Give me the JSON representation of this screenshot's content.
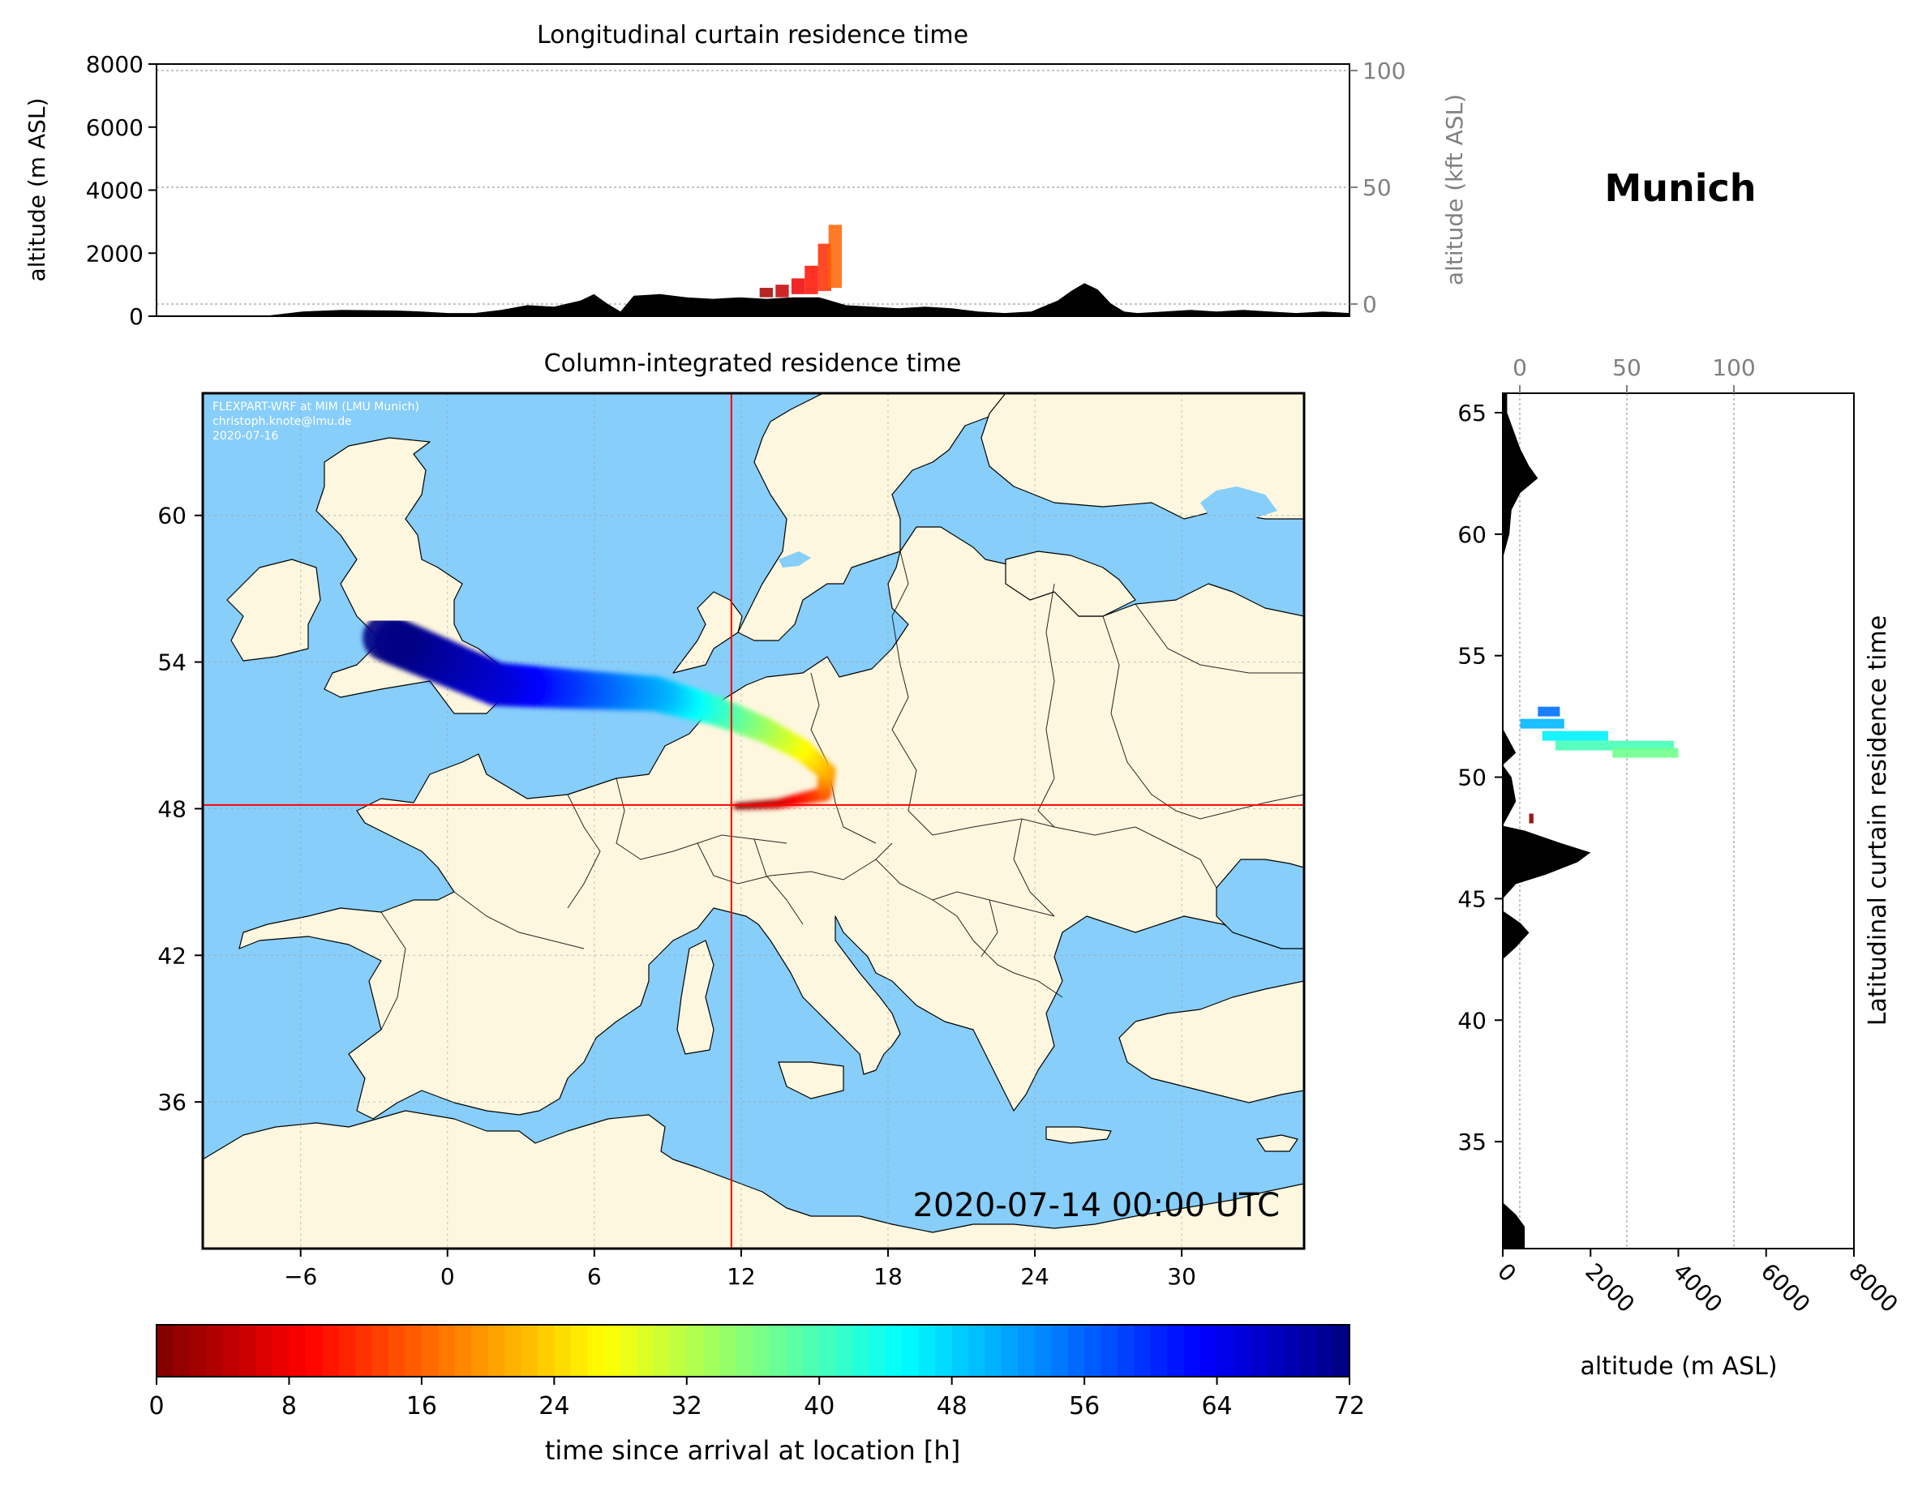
{
  "location_title": "Munich",
  "stamp": "2020-07-14 00:00 UTC",
  "credits": [
    "FLEXPART-WRF at MIM (LMU Munich)",
    "christoph.knote@lmu.de",
    "2020-07-16"
  ],
  "colors": {
    "ocean": "#87CEFA",
    "land": "#FEF7DF",
    "terrain": "#000000",
    "crosshair": "#ff0000"
  },
  "chart_data": [
    {
      "type": "area",
      "title": "Longitudinal curtain residence time",
      "ylabel": "altitude (m ASL)",
      "ylim": [
        0,
        8000
      ],
      "yticks": [
        0,
        2000,
        4000,
        6000,
        8000
      ],
      "y2label": "altitude (kft ASL)",
      "y2ticks": [
        0,
        50,
        100
      ],
      "terrain": {
        "x": [
          -10,
          -6,
          -4.5,
          -3,
          -1,
          0,
          1,
          2,
          3,
          4,
          5,
          6,
          6.5,
          7,
          7.5,
          8,
          9,
          10,
          11,
          12,
          13,
          14,
          15,
          16,
          17,
          18,
          19,
          20,
          21,
          22,
          23,
          24,
          24.5,
          25,
          25.5,
          26,
          26.5,
          27,
          28,
          29,
          30,
          31,
          32,
          33,
          34,
          35
        ],
        "y": [
          0,
          0,
          150,
          200,
          180,
          150,
          100,
          100,
          200,
          350,
          300,
          500,
          700,
          400,
          150,
          650,
          700,
          600,
          550,
          600,
          550,
          600,
          600,
          350,
          300,
          250,
          300,
          250,
          150,
          100,
          150,
          500,
          800,
          1050,
          850,
          400,
          150,
          100,
          150,
          200,
          150,
          200,
          150,
          100,
          150,
          100
        ]
      },
      "residence": [
        {
          "lon": 13.0,
          "bottom": 600,
          "top": 900,
          "hours": 3
        },
        {
          "lon": 13.6,
          "bottom": 600,
          "top": 1000,
          "hours": 5
        },
        {
          "lon": 14.2,
          "bottom": 700,
          "top": 1200,
          "hours": 8
        },
        {
          "lon": 14.7,
          "bottom": 700,
          "top": 1600,
          "hours": 10
        },
        {
          "lon": 15.2,
          "bottom": 800,
          "top": 2300,
          "hours": 12
        },
        {
          "lon": 15.6,
          "bottom": 900,
          "top": 2900,
          "hours": 16
        }
      ]
    },
    {
      "type": "heatmap",
      "title": "Column-integrated residence time",
      "xlim": [
        -10,
        35
      ],
      "ylim": [
        30,
        65
      ],
      "xticks": [
        -6,
        0,
        6,
        12,
        18,
        24,
        30
      ],
      "yticks": [
        36,
        42,
        48,
        54,
        60
      ],
      "release_point": {
        "lon": 11.6,
        "lat": 48.15
      },
      "colorbar": {
        "label": "time since arrival at location [h]",
        "range": [
          0,
          72
        ],
        "ticks": [
          0,
          8,
          16,
          24,
          32,
          40,
          48,
          56,
          64,
          72
        ],
        "colormap": "jet"
      },
      "plume_path": [
        {
          "lon": 11.8,
          "lat": 48.1,
          "hours": 0
        },
        {
          "lon": 13.5,
          "lat": 48.2,
          "hours": 5
        },
        {
          "lon": 15.4,
          "lat": 48.6,
          "hours": 14
        },
        {
          "lon": 15.5,
          "lat": 49.5,
          "hours": 20
        },
        {
          "lon": 14.5,
          "lat": 50.4,
          "hours": 26
        },
        {
          "lon": 13.0,
          "lat": 51.2,
          "hours": 32
        },
        {
          "lon": 11.0,
          "lat": 52.0,
          "hours": 40
        },
        {
          "lon": 8.5,
          "lat": 52.7,
          "hours": 50
        },
        {
          "lon": 5.0,
          "lat": 52.9,
          "hours": 58
        },
        {
          "lon": 2.0,
          "lat": 53.1,
          "hours": 65
        },
        {
          "lon": -2.5,
          "lat": 55.0,
          "hours": 72
        }
      ]
    },
    {
      "type": "area",
      "title": "Latitudinal curtain residence time",
      "xlabel": "altitude (m ASL)",
      "xlim": [
        0,
        8000
      ],
      "xticks": [
        0,
        2000,
        4000,
        6000,
        8000
      ],
      "x2ticks": [
        0,
        50,
        100
      ],
      "ylim": [
        30.6,
        65.8
      ],
      "yticks": [
        35,
        40,
        45,
        50,
        55,
        60,
        65
      ],
      "terrain": {
        "lat": [
          30.6,
          31.5,
          32.0,
          32.5,
          42.5,
          43.0,
          43.6,
          44.0,
          44.5,
          45.0,
          45.6,
          46.0,
          46.5,
          46.9,
          47.3,
          47.8,
          48.0,
          49.0,
          50.0,
          50.5,
          51.0,
          51.5,
          52.0,
          54.0,
          56.0,
          59.0,
          60.0,
          61.0,
          61.7,
          62.3,
          62.8,
          63.5,
          64.5,
          65.0,
          65.8
        ],
        "alt": [
          500,
          500,
          300,
          0,
          0,
          300,
          600,
          400,
          0,
          0,
          300,
          1000,
          1700,
          2000,
          1300,
          500,
          0,
          300,
          200,
          0,
          300,
          150,
          0,
          0,
          0,
          0,
          150,
          200,
          400,
          800,
          600,
          400,
          200,
          100,
          100
        ]
      },
      "residence": [
        {
          "lat": 52.7,
          "left": 800,
          "right": 1300,
          "hours": 55
        },
        {
          "lat": 52.2,
          "left": 400,
          "right": 1400,
          "hours": 50
        },
        {
          "lat": 51.7,
          "left": 900,
          "right": 2400,
          "hours": 46
        },
        {
          "lat": 51.3,
          "left": 1200,
          "right": 3900,
          "hours": 40
        },
        {
          "lat": 51.0,
          "left": 2500,
          "right": 4000,
          "hours": 37
        },
        {
          "lat": 48.3,
          "left": 600,
          "right": 700,
          "hours": 1
        }
      ]
    }
  ]
}
